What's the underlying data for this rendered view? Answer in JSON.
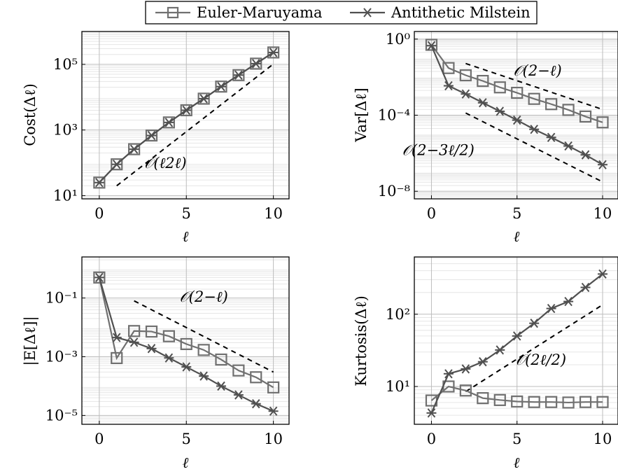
{
  "legend": {
    "entries": [
      {
        "label": "Euler-Maruyama",
        "marker": "square",
        "color": "#707070"
      },
      {
        "label": "Antithetic Milstein",
        "marker": "star",
        "color": "#505050"
      }
    ],
    "placement": "top-center"
  },
  "reference_line_style": {
    "color": "#000000",
    "dash": true
  },
  "chart_data": [
    {
      "type": "line",
      "ylabel": "Cost(Δℓ)",
      "xlabel": "ℓ",
      "yscale": "log",
      "xlim": [
        -1,
        10.9
      ],
      "ylim": [
        8,
        1000000
      ],
      "xticks": [
        0,
        5,
        10
      ],
      "yticks": [
        {
          "value": 10,
          "label": "10¹"
        },
        {
          "value": 1000,
          "label": "10³"
        },
        {
          "value": 100000,
          "label": "10⁵"
        }
      ],
      "grid": true,
      "series": [
        {
          "name": "Euler-Maruyama",
          "marker": "square",
          "x": [
            0,
            1,
            2,
            3,
            4,
            5,
            6,
            7,
            8,
            9,
            10
          ],
          "values": [
            25,
            90,
            260,
            680,
            1700,
            4000,
            9000,
            21000,
            47000,
            105000,
            230000
          ]
        },
        {
          "name": "Antithetic Milstein",
          "marker": "star",
          "x": [
            0,
            1,
            2,
            3,
            4,
            5,
            6,
            7,
            8,
            9,
            10
          ],
          "values": [
            25,
            90,
            260,
            680,
            1700,
            4000,
            9000,
            21000,
            47000,
            105000,
            230000
          ]
        }
      ],
      "reference_lines": [
        {
          "label": "𝒪(ℓ2ℓ)",
          "x": [
            1,
            10
          ],
          "values": [
            20,
            102400
          ],
          "annotation_at": {
            "x": 3.8,
            "y": 70
          }
        }
      ]
    },
    {
      "type": "line",
      "ylabel": "Var[Δℓ]",
      "xlabel": "ℓ",
      "yscale": "log",
      "xlim": [
        -1,
        10.9
      ],
      "ylim": [
        4e-09,
        2.5
      ],
      "xticks": [
        0,
        5,
        10
      ],
      "yticks": [
        {
          "value": 1e-08,
          "label": "10⁻⁸"
        },
        {
          "value": 0.0001,
          "label": "10⁻⁴"
        },
        {
          "value": 1,
          "label": "10⁰"
        }
      ],
      "grid": true,
      "series": [
        {
          "name": "Euler-Maruyama",
          "marker": "square",
          "x": [
            0,
            1,
            2,
            3,
            4,
            5,
            6,
            7,
            8,
            9,
            10
          ],
          "values": [
            0.5,
            0.03,
            0.0125,
            0.0063,
            0.0029,
            0.0015,
            0.00072,
            0.00038,
            0.00019,
            8.5e-05,
            4.2e-05
          ]
        },
        {
          "name": "Antithetic Milstein",
          "marker": "star",
          "x": [
            0,
            1,
            2,
            3,
            4,
            5,
            6,
            7,
            8,
            9,
            10
          ],
          "values": [
            0.45,
            0.0035,
            0.0013,
            0.00045,
            0.00016,
            5.5e-05,
            1.8e-05,
            6.8e-06,
            2.4e-06,
            8.2e-07,
            2.5e-07
          ]
        }
      ],
      "reference_lines": [
        {
          "label": "𝒪(2−ℓ)",
          "x": [
            2,
            10
          ],
          "values": [
            0.052,
            0.0002
          ],
          "annotation_at": {
            "x": 6.2,
            "y": 0.012
          }
        },
        {
          "label": "𝒪(2−3ℓ/2)",
          "x": [
            2,
            10
          ],
          "values": [
            0.00013,
            3.1e-08
          ],
          "annotation_at": {
            "x": 0.4,
            "y": 8e-07
          }
        }
      ]
    },
    {
      "type": "line",
      "ylabel": "|E[Δℓ]|",
      "xlabel": "ℓ",
      "yscale": "log",
      "xlim": [
        -1,
        10.9
      ],
      "ylim": [
        5e-06,
        2.5
      ],
      "xticks": [
        0,
        5,
        10
      ],
      "yticks": [
        {
          "value": 1e-05,
          "label": "10⁻⁵"
        },
        {
          "value": 0.001,
          "label": "10⁻³"
        },
        {
          "value": 0.1,
          "label": "10⁻¹"
        }
      ],
      "grid": true,
      "series": [
        {
          "name": "Euler-Maruyama",
          "marker": "square",
          "x": [
            0,
            1,
            2,
            3,
            4,
            5,
            6,
            7,
            8,
            9,
            10
          ],
          "values": [
            0.5,
            0.0009,
            0.0075,
            0.0072,
            0.005,
            0.0027,
            0.0017,
            0.0008,
            0.00034,
            0.0002,
            9e-05
          ]
        },
        {
          "name": "Antithetic Milstein",
          "marker": "star",
          "x": [
            0,
            1,
            2,
            3,
            4,
            5,
            6,
            7,
            8,
            9,
            10
          ],
          "values": [
            0.5,
            0.0045,
            0.0031,
            0.0019,
            0.00091,
            0.00045,
            0.00022,
            0.0001,
            5e-05,
            2.5e-05,
            1.4e-05
          ]
        }
      ],
      "reference_lines": [
        {
          "label": "𝒪(2−ℓ)",
          "x": [
            2,
            10
          ],
          "values": [
            0.08,
            0.0003
          ],
          "annotation_at": {
            "x": 6.0,
            "y": 0.075
          }
        }
      ]
    },
    {
      "type": "line",
      "ylabel": "Kurtosis(Δℓ)",
      "xlabel": "ℓ",
      "yscale": "log",
      "xlim": [
        -1,
        10.9
      ],
      "ylim": [
        3,
        620
      ],
      "xticks": [
        0,
        5,
        10
      ],
      "yticks": [
        {
          "value": 10,
          "label": "10¹"
        },
        {
          "value": 100,
          "label": "10²"
        }
      ],
      "grid": true,
      "series": [
        {
          "name": "Euler-Maruyama",
          "marker": "square",
          "x": [
            0,
            1,
            2,
            3,
            4,
            5,
            6,
            7,
            8,
            9,
            10
          ],
          "values": [
            6.4,
            10,
            8.8,
            6.9,
            6.5,
            6.2,
            6.1,
            6.1,
            6.0,
            6.1,
            6.1
          ]
        },
        {
          "name": "Antithetic Milstein",
          "marker": "star",
          "x": [
            0,
            1,
            2,
            3,
            4,
            5,
            6,
            7,
            8,
            9,
            10
          ],
          "values": [
            4.3,
            15,
            17.5,
            22,
            32,
            50,
            75,
            120,
            150,
            235,
            360
          ]
        }
      ],
      "reference_lines": [
        {
          "label": "𝒪(2ℓ/2)",
          "x": [
            2,
            10
          ],
          "values": [
            8.5,
            135
          ],
          "annotation_at": {
            "x": 6.4,
            "y": 20
          }
        }
      ]
    }
  ]
}
